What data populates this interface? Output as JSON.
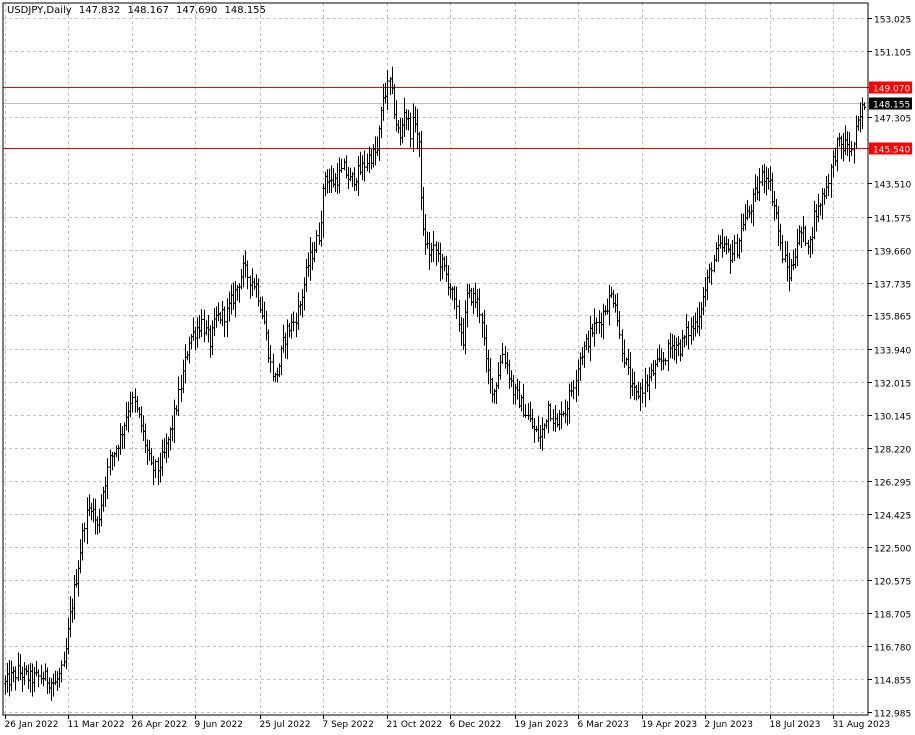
{
  "header": {
    "symbol": "USDJPY,Daily",
    "open": "147.832",
    "high": "148.167",
    "low": "147.690",
    "close": "148.155"
  },
  "colors": {
    "background": "#ffffff",
    "grid": "#c0c0c0",
    "bars": "#000000",
    "level_line": "#ff0000",
    "price_line": "#c0c0c0",
    "current_price_label_bg": "#000000",
    "level_label_bg": "#ff0000"
  },
  "chart_data": {
    "type": "ohlc",
    "title": "USDJPY,Daily",
    "y_ticks": [
      "153.025",
      "151.105",
      "149.070",
      "147.305",
      "145.540",
      "143.510",
      "141.575",
      "139.660",
      "137.735",
      "135.865",
      "133.940",
      "132.015",
      "130.145",
      "128.220",
      "126.295",
      "124.425",
      "122.500",
      "120.575",
      "118.705",
      "116.780",
      "114.855",
      "112.985"
    ],
    "y_tick_values": [
      153.025,
      151.105,
      149.07,
      147.305,
      145.54,
      143.51,
      141.575,
      139.66,
      137.735,
      135.865,
      133.94,
      132.015,
      130.145,
      128.22,
      126.295,
      124.425,
      122.5,
      120.575,
      118.705,
      116.78,
      114.855,
      112.985
    ],
    "ylim": [
      112.8,
      153.9
    ],
    "x_ticks": [
      "26 Jan 2022",
      "11 Mar 2022",
      "26 Apr 2022",
      "9 Jun 2022",
      "25 Jul 2022",
      "7 Sep 2022",
      "21 Oct 2022",
      "6 Dec 2022",
      "19 Jan 2023",
      "6 Mar 2023",
      "19 Apr 2023",
      "2 Jun 2023",
      "18 Jul 2023",
      "31 Aug 2023"
    ],
    "x_tick_index": [
      0,
      30,
      61,
      91,
      122,
      152,
      183,
      213,
      244,
      274,
      305,
      335,
      366,
      396
    ],
    "bar_count": 412,
    "horizontal_levels": [
      {
        "value": 149.07,
        "label": "149.070"
      },
      {
        "value": 145.54,
        "label": "145.540"
      }
    ],
    "current_price": {
      "value": 148.155,
      "label": "148.155"
    },
    "anchors": [
      [
        0,
        114.6
      ],
      [
        6,
        115.3
      ],
      [
        12,
        114.9
      ],
      [
        18,
        115.0
      ],
      [
        24,
        114.6
      ],
      [
        28,
        115.5
      ],
      [
        31,
        118.5
      ],
      [
        35,
        121.5
      ],
      [
        38,
        124.0
      ],
      [
        41,
        125.0
      ],
      [
        44,
        123.6
      ],
      [
        47,
        125.8
      ],
      [
        50,
        127.5
      ],
      [
        55,
        128.8
      ],
      [
        60,
        131.0
      ],
      [
        62,
        130.7
      ],
      [
        65,
        129.5
      ],
      [
        70,
        127.0
      ],
      [
        73,
        127.0
      ],
      [
        76,
        127.8
      ],
      [
        80,
        129.5
      ],
      [
        84,
        131.8
      ],
      [
        88,
        134.5
      ],
      [
        90,
        134.8
      ],
      [
        94,
        135.5
      ],
      [
        98,
        134.3
      ],
      [
        101,
        135.7
      ],
      [
        106,
        136.0
      ],
      [
        110,
        137.2
      ],
      [
        114,
        138.5
      ],
      [
        117,
        138.0
      ],
      [
        120,
        137.6
      ],
      [
        124,
        135.5
      ],
      [
        127,
        133.0
      ],
      [
        129,
        132.2
      ],
      [
        131,
        133.0
      ],
      [
        133,
        134.2
      ],
      [
        135,
        135.0
      ],
      [
        138,
        135.5
      ],
      [
        141,
        136.5
      ],
      [
        145,
        138.8
      ],
      [
        150,
        140.5
      ],
      [
        153,
        144.0
      ],
      [
        156,
        143.5
      ],
      [
        159,
        143.8
      ],
      [
        162,
        144.3
      ],
      [
        165,
        143.6
      ],
      [
        170,
        144.2
      ],
      [
        174,
        145.0
      ],
      [
        178,
        145.3
      ],
      [
        181,
        148.5
      ],
      [
        184,
        149.3
      ],
      [
        187,
        147.0
      ],
      [
        189,
        146.0
      ],
      [
        191,
        147.8
      ],
      [
        194,
        146.5
      ],
      [
        196,
        147.2
      ],
      [
        198,
        145.5
      ],
      [
        200,
        140.5
      ],
      [
        203,
        139.5
      ],
      [
        206,
        139.6
      ],
      [
        208,
        139.0
      ],
      [
        210,
        138.5
      ],
      [
        213,
        137.5
      ],
      [
        216,
        136.0
      ],
      [
        219,
        134.5
      ],
      [
        221,
        136.9
      ],
      [
        223,
        137.0
      ],
      [
        226,
        136.6
      ],
      [
        228,
        135.7
      ],
      [
        230,
        133.0
      ],
      [
        232,
        132.0
      ],
      [
        234,
        131.5
      ],
      [
        236,
        132.6
      ],
      [
        238,
        133.7
      ],
      [
        240,
        133.0
      ],
      [
        243,
        131.5
      ],
      [
        246,
        131.0
      ],
      [
        248,
        130.5
      ],
      [
        250,
        130.0
      ],
      [
        253,
        129.2
      ],
      [
        256,
        128.8
      ],
      [
        258,
        129.5
      ],
      [
        260,
        130.7
      ],
      [
        262,
        130.0
      ],
      [
        264,
        129.4
      ],
      [
        266,
        130.5
      ],
      [
        268,
        130.3
      ],
      [
        270,
        131.2
      ],
      [
        272,
        132.0
      ],
      [
        275,
        133.5
      ],
      [
        278,
        134.2
      ],
      [
        281,
        135.0
      ],
      [
        284,
        135.5
      ],
      [
        287,
        136.3
      ],
      [
        290,
        137.0
      ],
      [
        292,
        136.8
      ],
      [
        294,
        134.6
      ],
      [
        296,
        133.5
      ],
      [
        298,
        132.5
      ],
      [
        300,
        131.5
      ],
      [
        302,
        131.2
      ],
      [
        304,
        131.6
      ],
      [
        306,
        131.8
      ],
      [
        308,
        132.2
      ],
      [
        311,
        132.8
      ],
      [
        314,
        133.2
      ],
      [
        317,
        133.8
      ],
      [
        320,
        134.3
      ],
      [
        323,
        134.0
      ],
      [
        326,
        134.8
      ],
      [
        329,
        135.2
      ],
      [
        331,
        135.6
      ],
      [
        333,
        136.5
      ],
      [
        335,
        137.3
      ],
      [
        338,
        138.8
      ],
      [
        341,
        139.6
      ],
      [
        344,
        139.8
      ],
      [
        347,
        139.4
      ],
      [
        350,
        139.8
      ],
      [
        353,
        141.3
      ],
      [
        356,
        141.8
      ],
      [
        359,
        142.8
      ],
      [
        362,
        143.9
      ],
      [
        365,
        144.0
      ],
      [
        367,
        142.8
      ],
      [
        369,
        141.7
      ],
      [
        371,
        139.8
      ],
      [
        373,
        139.0
      ],
      [
        375,
        138.2
      ],
      [
        377,
        139.0
      ],
      [
        379,
        140.2
      ],
      [
        381,
        140.6
      ],
      [
        383,
        140.4
      ],
      [
        385,
        140.0
      ],
      [
        387,
        141.6
      ],
      [
        389,
        142.0
      ],
      [
        391,
        142.8
      ],
      [
        393,
        143.3
      ],
      [
        395,
        144.3
      ],
      [
        398,
        145.7
      ],
      [
        401,
        145.6
      ],
      [
        403,
        145.8
      ],
      [
        405,
        145.2
      ],
      [
        407,
        146.4
      ],
      [
        409,
        147.3
      ],
      [
        411,
        148.155
      ]
    ]
  }
}
